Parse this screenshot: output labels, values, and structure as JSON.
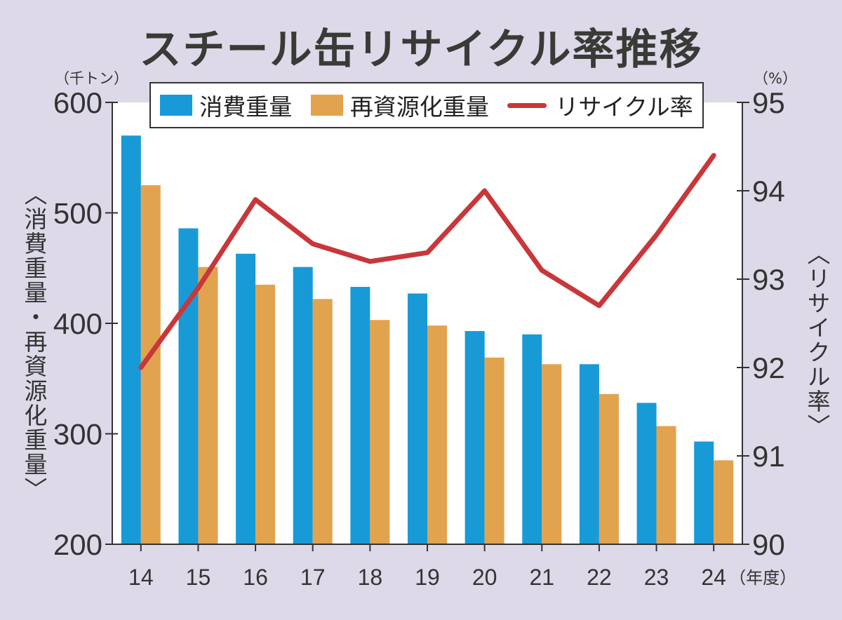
{
  "chart_data": {
    "type": "bar",
    "title": "スチール缶リサイクル率推移",
    "categories": [
      "14",
      "15",
      "16",
      "17",
      "18",
      "19",
      "20",
      "21",
      "22",
      "23",
      "24"
    ],
    "xlabel": "（年度）",
    "series": [
      {
        "name": "消費重量",
        "type": "bar",
        "axis": "left",
        "values": [
          570,
          486,
          463,
          451,
          433,
          427,
          393,
          390,
          363,
          328,
          293
        ]
      },
      {
        "name": "再資源化重量",
        "type": "bar",
        "axis": "left",
        "values": [
          525,
          451,
          435,
          422,
          403,
          398,
          369,
          363,
          336,
          307,
          276
        ]
      },
      {
        "name": "リサイクル率",
        "type": "line",
        "axis": "right",
        "values": [
          92.0,
          92.9,
          93.9,
          93.4,
          93.2,
          93.3,
          94.0,
          93.1,
          92.7,
          93.5,
          94.4
        ]
      }
    ],
    "y_left": {
      "unit": "（千トン）",
      "label": "〈消費重量・再資源化重量〉",
      "range": [
        200,
        600
      ],
      "ticks": [
        "200",
        "300",
        "400",
        "500",
        "600"
      ]
    },
    "y_right": {
      "unit": "（%）",
      "label": "〈リサイクル率〉",
      "range": [
        90,
        95
      ],
      "ticks": [
        "90",
        "91",
        "92",
        "93",
        "94",
        "95"
      ]
    },
    "legend_position": "top-center",
    "grid": false
  },
  "colors": {
    "consumption": "#189ad7",
    "recycled": "#e2a34f",
    "rate": "#c8373a",
    "axis": "#333333",
    "background": "#ddd9e8",
    "plot": "#ffffff"
  }
}
